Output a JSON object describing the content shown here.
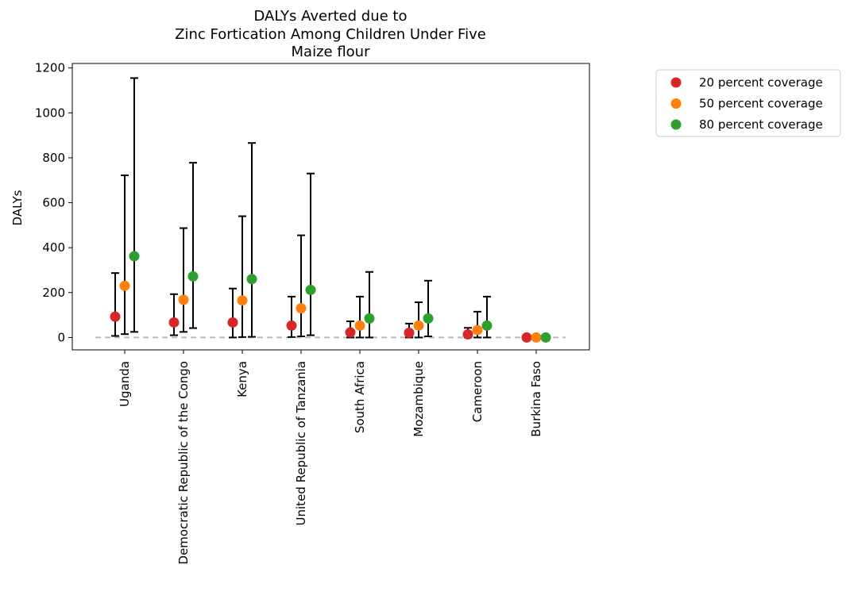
{
  "chart_data": {
    "type": "scatter",
    "title_lines": [
      "DALYs Averted due to",
      "Zinc Fortication Among Children Under Five",
      "Maize flour"
    ],
    "xlabel": "",
    "ylabel": "DALYs",
    "ylim": [
      -55,
      1220
    ],
    "yticks": [
      0,
      200,
      400,
      600,
      800,
      1000,
      1200
    ],
    "categories": [
      "Uganda",
      "Democratic Republic of the Congo",
      "Kenya",
      "United Republic of Tanzania",
      "South Africa",
      "Mozambique",
      "Cameroon",
      "Burkina Faso"
    ],
    "reference_line": 0,
    "legend_position": "outside-right",
    "series": [
      {
        "name": "20 percent coverage",
        "color": "#d62728",
        "values": [
          93,
          67,
          67,
          53,
          23,
          21,
          14,
          0
        ],
        "lower": [
          7,
          10,
          0,
          2,
          0,
          0,
          0,
          0
        ],
        "upper": [
          287,
          193,
          218,
          182,
          72,
          62,
          43,
          0
        ]
      },
      {
        "name": "50 percent coverage",
        "color": "#ff7f0e",
        "values": [
          230,
          168,
          165,
          130,
          53,
          53,
          33,
          0
        ],
        "lower": [
          15,
          25,
          2,
          5,
          0,
          0,
          0,
          0
        ],
        "upper": [
          722,
          487,
          540,
          455,
          182,
          157,
          115,
          0
        ]
      },
      {
        "name": "80 percent coverage",
        "color": "#2ca02c",
        "values": [
          362,
          272,
          260,
          212,
          85,
          85,
          53,
          0
        ],
        "lower": [
          25,
          42,
          3,
          10,
          0,
          5,
          0,
          0
        ],
        "upper": [
          1155,
          778,
          866,
          730,
          292,
          253,
          182,
          0
        ]
      }
    ]
  }
}
